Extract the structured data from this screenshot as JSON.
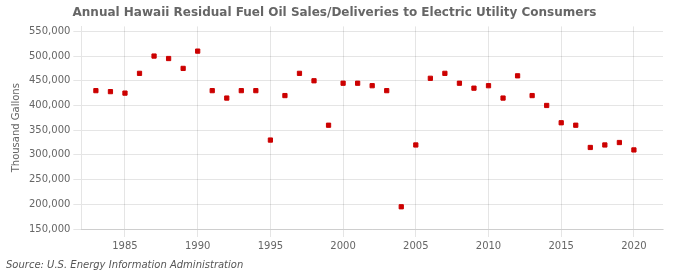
{
  "chart_data": {
    "type": "scatter",
    "title": "Annual Hawaii Residual Fuel Oil Sales/Deliveries to Electric Utility Consumers",
    "ylabel": "Thousand Gallons",
    "annotations": [
      "Source: U.S. Energy Information Administration"
    ],
    "color": "#cc0000",
    "marker": "square",
    "grid": true,
    "xlim": [
      1982,
      2022
    ],
    "ylim": [
      150000,
      560000
    ],
    "xticks": [
      1985,
      1990,
      1995,
      2000,
      2005,
      2010,
      2015,
      2020
    ],
    "yticks": [
      {
        "value": 150000,
        "label": "150,000"
      },
      {
        "value": 200000,
        "label": "200,000"
      },
      {
        "value": 250000,
        "label": "250,000"
      },
      {
        "value": 300000,
        "label": "300,000"
      },
      {
        "value": 350000,
        "label": "350,000"
      },
      {
        "value": 400000,
        "label": "400,000"
      },
      {
        "value": 450000,
        "label": "450,000"
      },
      {
        "value": 500000,
        "label": "500,000"
      },
      {
        "value": 550000,
        "label": "550,000"
      }
    ],
    "x": [
      1983,
      1984,
      1985,
      1986,
      1987,
      1988,
      1989,
      1990,
      1991,
      1992,
      1993,
      1994,
      1995,
      1996,
      1997,
      1998,
      1999,
      2000,
      2001,
      2002,
      2003,
      2004,
      2005,
      2006,
      2007,
      2008,
      2009,
      2010,
      2011,
      2012,
      2013,
      2014,
      2015,
      2016,
      2017,
      2018,
      2019,
      2020
    ],
    "values": [
      430000,
      428000,
      425000,
      465000,
      500000,
      495000,
      475000,
      510000,
      430000,
      415000,
      430000,
      430000,
      330000,
      420000,
      465000,
      450000,
      360000,
      445000,
      445000,
      440000,
      430000,
      195000,
      320000,
      455000,
      465000,
      445000,
      435000,
      440000,
      415000,
      460000,
      420000,
      400000,
      365000,
      360000,
      315000,
      320000,
      325000,
      310000
    ]
  }
}
